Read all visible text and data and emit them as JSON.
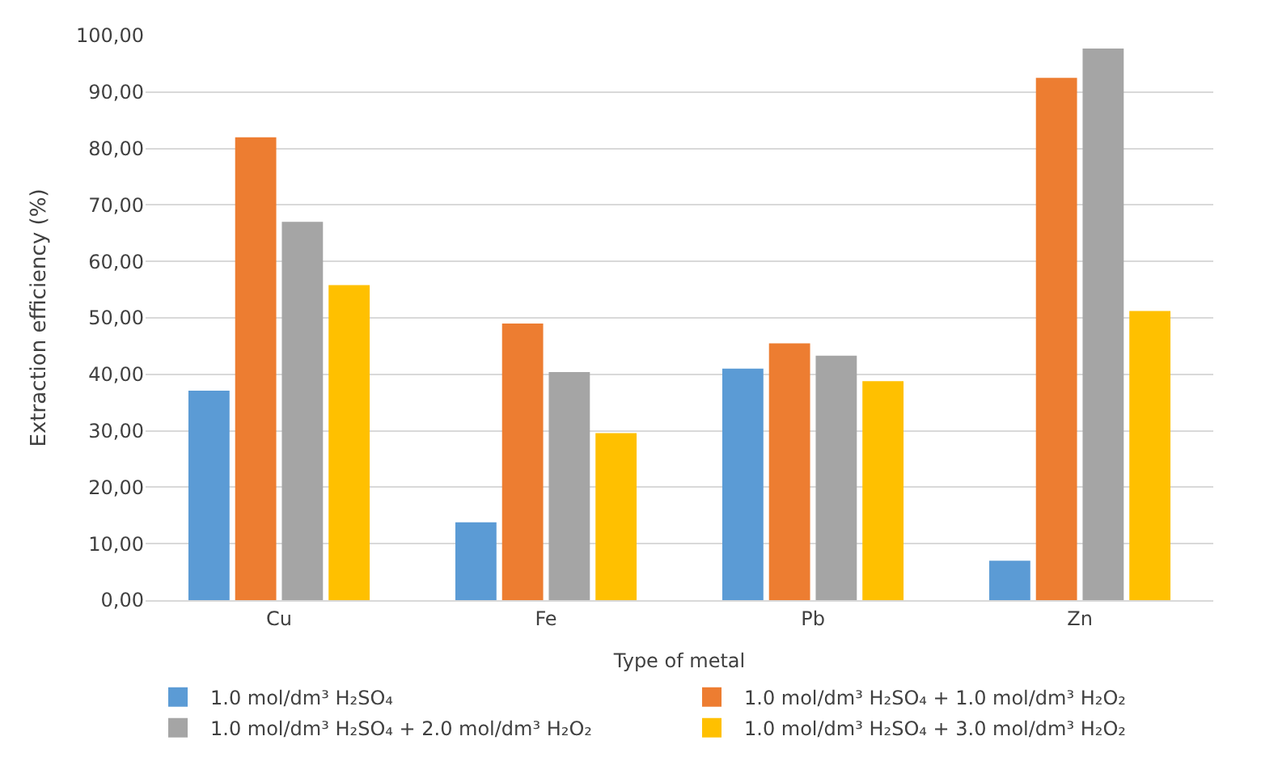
{
  "chart_data": {
    "type": "bar",
    "xlabel": "Type of metal",
    "ylabel": "Extraction efficiency (%)",
    "categories": [
      "Cu",
      "Fe",
      "Pb",
      "Zn"
    ],
    "series": [
      {
        "name": "1.0 mol/dm³ H₂SO₄",
        "color": "#5b9bd5",
        "values": [
          37.1,
          13.8,
          41.0,
          7.0
        ]
      },
      {
        "name": "1.0 mol/dm³ H₂SO₄ + 1.0 mol/dm³ H₂O₂",
        "color": "#ed7d31",
        "values": [
          82.0,
          49.0,
          45.5,
          92.5
        ]
      },
      {
        "name": "1.0 mol/dm³ H₂SO₄ + 2.0 mol/dm³ H₂O₂",
        "color": "#a5a5a5",
        "values": [
          67.0,
          40.4,
          43.3,
          97.7
        ]
      },
      {
        "name": "1.0 mol/dm³ H₂SO₄ + 3.0 mol/dm³ H₂O₂",
        "color": "#ffc000",
        "values": [
          55.8,
          29.6,
          38.8,
          51.2
        ]
      }
    ],
    "ylim": [
      0,
      100
    ],
    "yticks": [
      {
        "value": 0,
        "label": "0,00"
      },
      {
        "value": 10,
        "label": "10,00"
      },
      {
        "value": 20,
        "label": "20,00"
      },
      {
        "value": 30,
        "label": "30,00"
      },
      {
        "value": 40,
        "label": "40,00"
      },
      {
        "value": 50,
        "label": "50,00"
      },
      {
        "value": 60,
        "label": "60,00"
      },
      {
        "value": 70,
        "label": "70,00"
      },
      {
        "value": 80,
        "label": "80,00"
      },
      {
        "value": 90,
        "label": "90,00"
      },
      {
        "value": 100,
        "label": "100,00"
      }
    ],
    "grid": "y",
    "legend": "bottom"
  }
}
